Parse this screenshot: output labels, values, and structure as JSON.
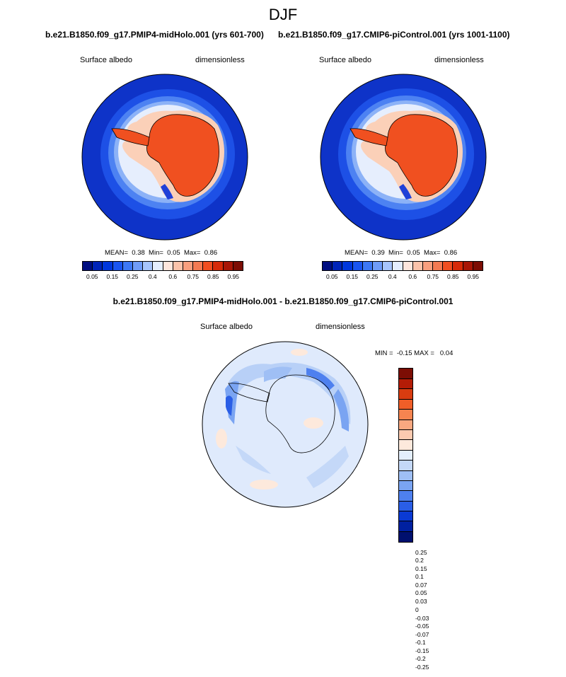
{
  "figure_title": "DJF",
  "panels": [
    {
      "title": "b.e21.B1850.f09_g17.PMIP4-midHolo.001 (yrs 601-700)",
      "variable": "Surface albedo",
      "units": "dimensionless",
      "stats": "MEAN=  0.38  Min=  0.05  Max=  0.86",
      "mean": 0.38,
      "min": 0.05,
      "max": 0.86
    },
    {
      "title": "b.e21.B1850.f09_g17.CMIP6-piControl.001 (yrs 1001-1100)",
      "variable": "Surface albedo",
      "units": "dimensionless",
      "stats": "MEAN=  0.39  Min=  0.05  Max=  0.86",
      "mean": 0.39,
      "min": 0.05,
      "max": 0.86
    },
    {
      "title": "b.e21.B1850.f09_g17.PMIP4-midHolo.001 - b.e21.B1850.f09_g17.CMIP6-piControl.001",
      "variable": "Surface albedo",
      "units": "dimensionless",
      "stats": "MIN =  -0.15 MAX =   0.04",
      "min": -0.15,
      "max": 0.04
    }
  ],
  "colorbar_abs": {
    "colors": [
      "#000e80",
      "#0024b8",
      "#0037dc",
      "#1a55f0",
      "#3d78f5",
      "#6f9cf8",
      "#a6c4fb",
      "#e4eefe",
      "#fde6dc",
      "#fbc3aa",
      "#f89f7e",
      "#f47a52",
      "#f04e20",
      "#d62a08",
      "#a81606",
      "#7c0d04"
    ],
    "labels": [
      "0.05",
      "0.15",
      "0.25",
      "0.4",
      "0.6",
      "0.75",
      "0.85",
      "0.95"
    ]
  },
  "colorbar_diff": {
    "colors": [
      "#7c0d04",
      "#b41c06",
      "#d93c10",
      "#f05e28",
      "#f68450",
      "#f9a880",
      "#fccab0",
      "#fde9dc",
      "#e3eefc",
      "#c4d8f8",
      "#9fbff5",
      "#7aa4f2",
      "#4e80ef",
      "#2a5ee6",
      "#0a3ad4",
      "#0020a0",
      "#00106e"
    ],
    "labels": [
      "0.25",
      "0.2",
      "0.15",
      "0.1",
      "0.07",
      "0.05",
      "0.03",
      "0",
      "-0.03",
      "-0.05",
      "-0.07",
      "-0.1",
      "-0.15",
      "-0.2",
      "-0.25"
    ]
  }
}
